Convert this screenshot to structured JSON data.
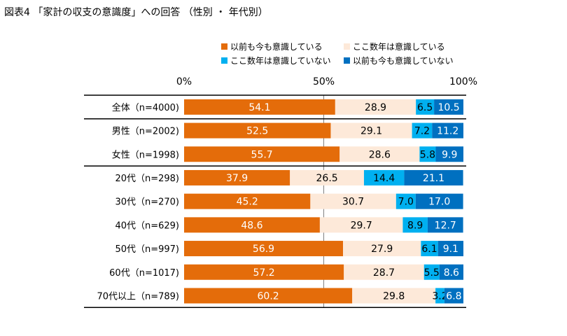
{
  "chart_data": {
    "type": "bar",
    "title": "図表4 「家計の収支の意識度」への回答 （性別 ・ 年代別）",
    "stacked": true,
    "orientation": "horizontal",
    "percent_stacked": true,
    "xlim": [
      0,
      100
    ],
    "x_ticks": [
      "0%",
      "50%",
      "100%"
    ],
    "categories": [
      "全体（n=4000)",
      "男性（n=2002)",
      "女性（n=1998)",
      "20代（n=298)",
      "30代（n=270)",
      "40代（n=629)",
      "50代（n=997)",
      "60代（n=1017)",
      "70代以上（n=789)"
    ],
    "series": [
      {
        "name": "以前も今も意識している",
        "color": "#E46C0A",
        "label_color": "#ffffff",
        "values": [
          54.1,
          52.5,
          55.7,
          37.9,
          45.2,
          48.6,
          56.9,
          57.2,
          60.2
        ]
      },
      {
        "name": "ここ数年は意識している",
        "color": "#FDE9D9",
        "label_color": "#000000",
        "values": [
          28.9,
          29.1,
          28.6,
          26.5,
          30.7,
          29.7,
          27.9,
          28.7,
          29.8
        ]
      },
      {
        "name": "ここ数年は意識していない",
        "color": "#00B0F0",
        "label_color": "#000000",
        "values": [
          6.5,
          7.2,
          5.8,
          14.4,
          7.0,
          8.9,
          6.1,
          5.5,
          3.2
        ]
      },
      {
        "name": "以前も今も意識していない",
        "color": "#0070C0",
        "label_color": "#ffffff",
        "values": [
          10.5,
          11.2,
          9.9,
          21.1,
          17.0,
          12.7,
          9.1,
          8.6,
          6.8
        ]
      }
    ],
    "legend_position": "top-right",
    "grid": false
  }
}
